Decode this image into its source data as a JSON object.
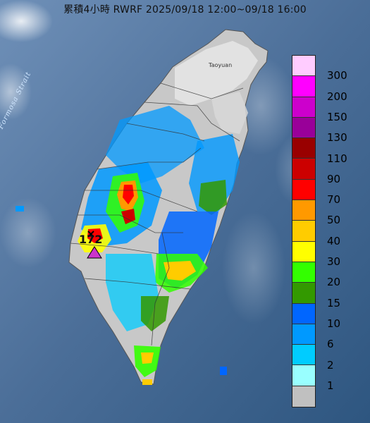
{
  "title": "累積4小時 RWRF 2025/09/18 12:00~09/18 16:00",
  "map_labels": {
    "strait": "Formosa Strait",
    "city": "Taoyuan",
    "max_value": "172"
  },
  "legend": {
    "levels": [
      {
        "label": "300",
        "color": "#ffccff"
      },
      {
        "label": "200",
        "color": "#ff00ff"
      },
      {
        "label": "150",
        "color": "#cc00cc"
      },
      {
        "label": "130",
        "color": "#990099"
      },
      {
        "label": "110",
        "color": "#990000"
      },
      {
        "label": "90",
        "color": "#cc0000"
      },
      {
        "label": "70",
        "color": "#ff0000"
      },
      {
        "label": "50",
        "color": "#ff9900"
      },
      {
        "label": "40",
        "color": "#ffcc00"
      },
      {
        "label": "30",
        "color": "#ffff00"
      },
      {
        "label": "20",
        "color": "#33ff00"
      },
      {
        "label": "15",
        "color": "#339900"
      },
      {
        "label": "10",
        "color": "#0066ff"
      },
      {
        "label": "6",
        "color": "#0099ff"
      },
      {
        "label": "2",
        "color": "#00ccff"
      },
      {
        "label": "1",
        "color": "#99ffff"
      },
      {
        "label": "",
        "color": "#c0c0c0"
      }
    ]
  }
}
